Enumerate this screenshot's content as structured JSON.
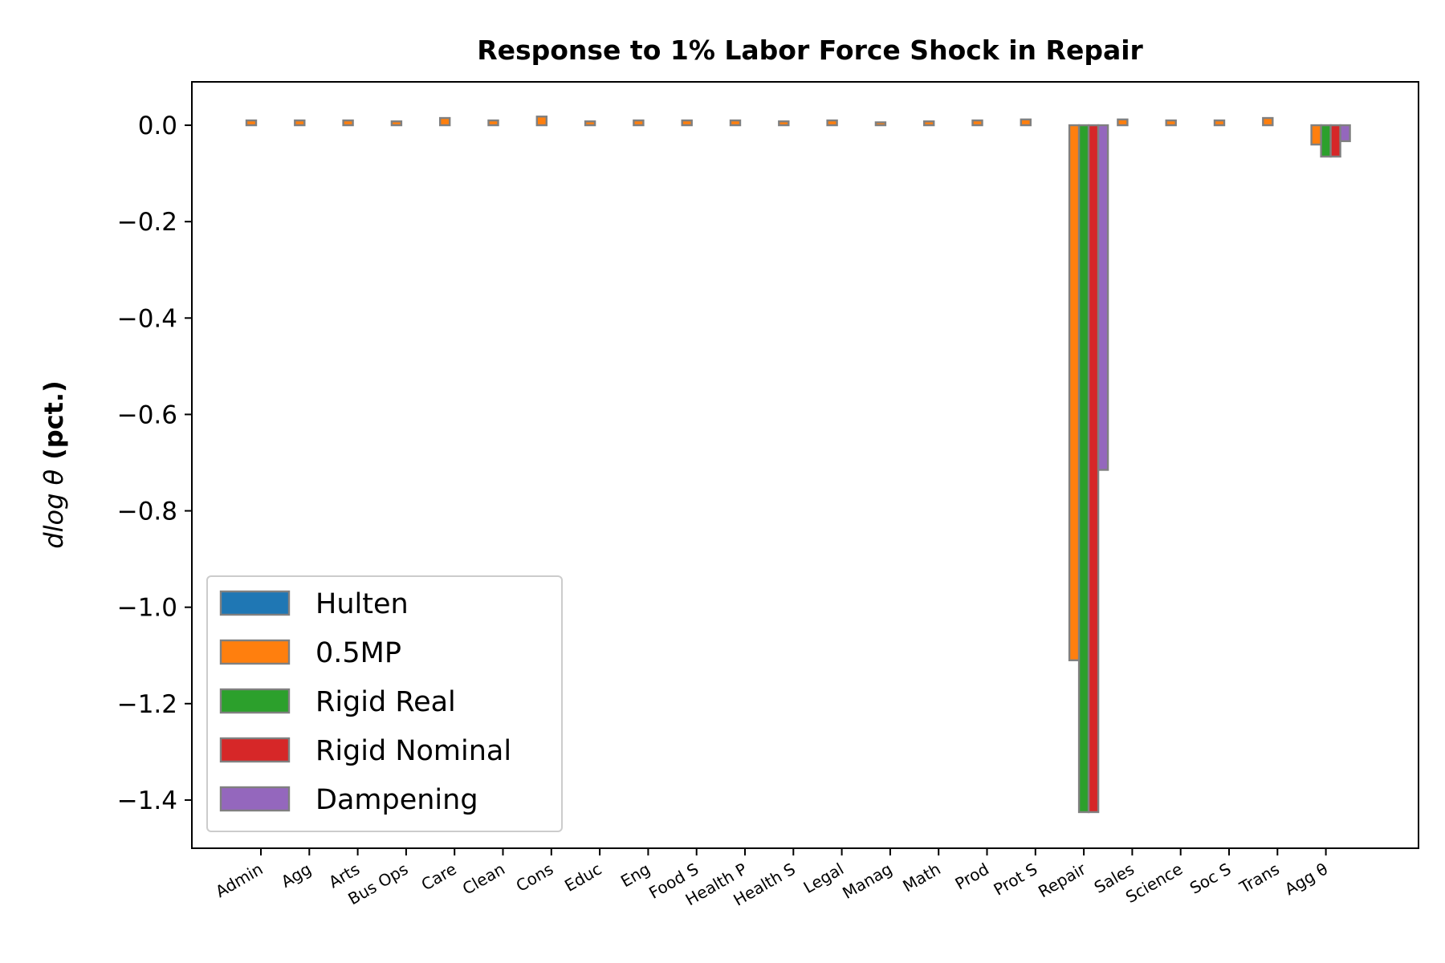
{
  "chart_data": {
    "type": "bar",
    "title": "Response to 1% Labor Force Shock in Repair",
    "xlabel": "",
    "ylabel_math": "dlog θ",
    "ylabel_bold": "(pct.)",
    "ylim": [
      -1.5,
      0.09
    ],
    "yticks": [
      0.0,
      -0.2,
      -0.4,
      -0.6,
      -0.8,
      -1.0,
      -1.2,
      -1.4
    ],
    "ytick_labels": [
      "0.0",
      "−0.2",
      "−0.4",
      "−0.6",
      "−0.8",
      "−1.0",
      "−1.2",
      "−1.4"
    ],
    "categories": [
      "Admin",
      "Agg",
      "Arts",
      "Bus Ops",
      "Care",
      "Clean",
      "Cons",
      "Educ",
      "Eng",
      "Food S",
      "Health P",
      "Health S",
      "Legal",
      "Manag",
      "Math",
      "Prod",
      "Prot S",
      "Repair",
      "Sales",
      "Science",
      "Soc S",
      "Trans",
      "Agg θ"
    ],
    "legend_position": "lower-left",
    "bar_edge_color": "#808080",
    "series": [
      {
        "name": "Hulten",
        "color": "#1f77b4",
        "values": [
          0,
          0,
          0,
          0,
          0,
          0,
          0,
          0,
          0,
          0,
          0,
          0,
          0,
          0,
          0,
          0,
          0,
          0,
          0,
          0,
          0,
          0,
          0
        ]
      },
      {
        "name": "0.5MP",
        "color": "#ff7f0e",
        "values": [
          0.01,
          0.01,
          0.01,
          0.008,
          0.015,
          0.01,
          0.018,
          0.008,
          0.01,
          0.01,
          0.01,
          0.008,
          0.01,
          0.006,
          0.008,
          0.01,
          0.012,
          -1.11,
          0.012,
          0.01,
          0.01,
          0.015,
          -0.04
        ]
      },
      {
        "name": "Rigid Real",
        "color": "#2ca02c",
        "values": [
          0,
          0,
          0,
          0,
          0,
          0,
          0,
          0,
          0,
          0,
          0,
          0,
          0,
          0,
          0,
          0,
          0,
          -1.425,
          0,
          0,
          0,
          0,
          -0.065
        ]
      },
      {
        "name": "Rigid Nominal",
        "color": "#d62728",
        "values": [
          0,
          0,
          0,
          0,
          0,
          0,
          0,
          0,
          0,
          0,
          0,
          0,
          0,
          0,
          0,
          0,
          0,
          -1.425,
          0,
          0,
          0,
          0,
          -0.065
        ]
      },
      {
        "name": "Dampening",
        "color": "#9467bd",
        "values": [
          0,
          0,
          0,
          0,
          0,
          0,
          0,
          0,
          0,
          0,
          0,
          0,
          0,
          0,
          0,
          0,
          0,
          -0.715,
          0,
          0,
          0,
          0,
          -0.033
        ]
      }
    ]
  }
}
